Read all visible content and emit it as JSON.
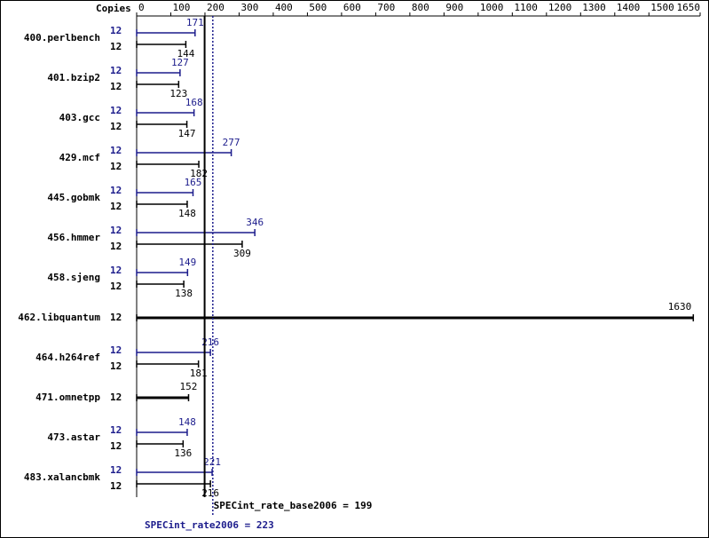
{
  "chart_data": {
    "type": "spec_bar",
    "axis_title": "Copies",
    "categories": [
      "400.perlbench",
      "401.bzip2",
      "403.gcc",
      "429.mcf",
      "445.gobmk",
      "456.hmmer",
      "458.sjeng",
      "462.libquantum",
      "464.h264ref",
      "471.omnetpp",
      "473.astar",
      "483.xalancbmk"
    ],
    "series": [
      {
        "color": "#1c1c8c",
        "copies": [
          12,
          12,
          12,
          12,
          12,
          12,
          12,
          null,
          12,
          null,
          12,
          12
        ],
        "values": [
          171,
          127,
          168,
          277,
          165,
          346,
          149,
          null,
          216,
          null,
          148,
          221
        ]
      },
      {
        "color": "#000000",
        "copies": [
          12,
          12,
          12,
          12,
          12,
          12,
          12,
          12,
          12,
          12,
          12,
          12
        ],
        "values": [
          144,
          123,
          147,
          182,
          148,
          309,
          138,
          1630,
          181,
          152,
          136,
          216
        ]
      }
    ],
    "xlim": [
      0,
      1650
    ],
    "xticks": [
      0,
      100,
      200,
      300,
      400,
      500,
      600,
      700,
      800,
      900,
      1000,
      1100,
      1200,
      1300,
      1400,
      1500,
      1650
    ],
    "reference_lines": [
      {
        "label": "SPECint_rate_base2006 = 199",
        "value": 199,
        "color": "#000000",
        "dashed": false
      },
      {
        "label": "SPECint_rate2006 = 223",
        "value": 223,
        "color": "#1c1c8c",
        "dashed": true
      }
    ]
  }
}
